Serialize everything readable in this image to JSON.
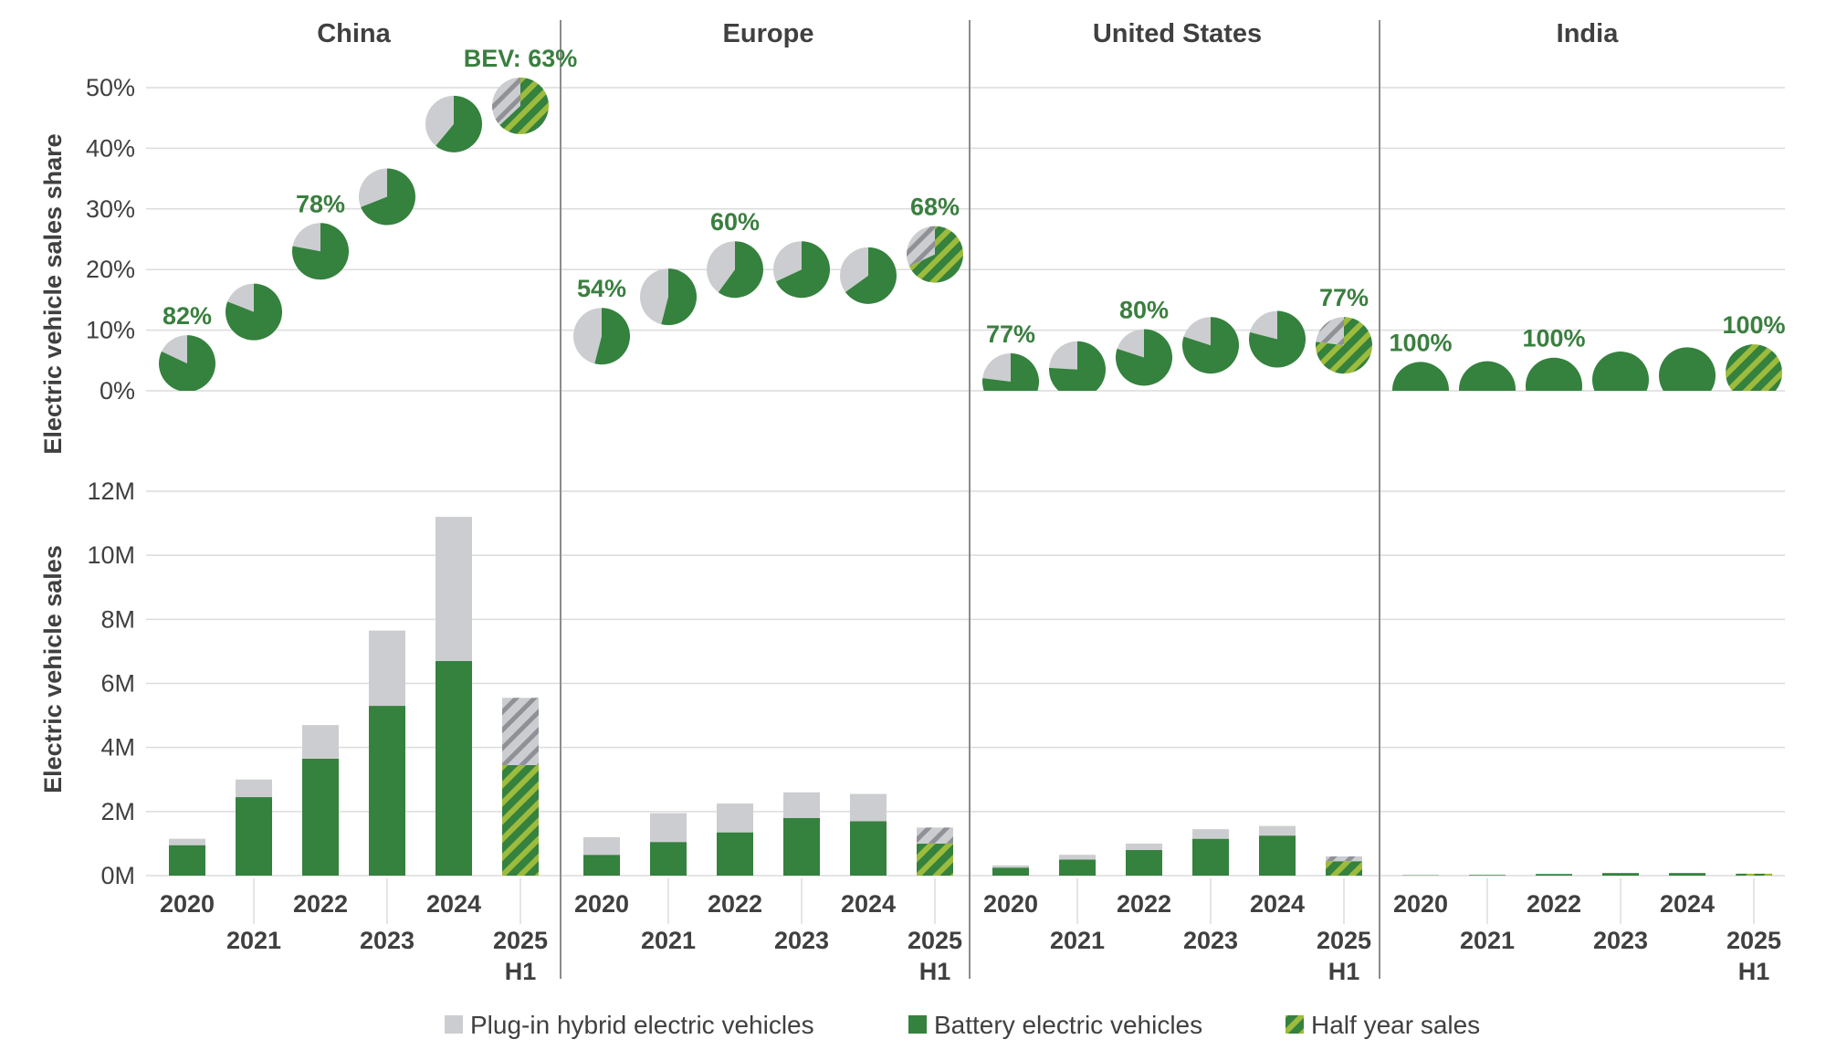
{
  "colors": {
    "bev": "#35813e",
    "phev": "#cccdd0",
    "half_year_stripe": "#9dbb3c",
    "half_year_phev_stripe": "#8f9196",
    "grid": "#dcdcdc",
    "divider": "#8c8c8c"
  },
  "chart_data": {
    "type": "bar",
    "regions": [
      "China",
      "Europe",
      "United States",
      "India"
    ],
    "years": [
      "2020",
      "2021",
      "2022",
      "2023",
      "2024",
      "2025"
    ],
    "last_year_suffix": "H1",
    "top_panel": {
      "ylabel": "Electric vehicle sales share",
      "yticks": [
        "0%",
        "10%",
        "20%",
        "30%",
        "40%",
        "50%"
      ],
      "ylim": [
        0,
        50
      ],
      "unit": "percent",
      "regions": [
        {
          "region": "China",
          "share": [
            4.5,
            13,
            23,
            32,
            44,
            47
          ],
          "bev_fraction": [
            0.82,
            0.81,
            0.78,
            0.69,
            0.61,
            0.63
          ],
          "labels": [
            {
              "index": 0,
              "text": "82%"
            },
            {
              "index": 2,
              "text": "78%"
            },
            {
              "index": 5,
              "text": "BEV: 63%"
            }
          ]
        },
        {
          "region": "Europe",
          "share": [
            9,
            15.5,
            20,
            20,
            19,
            22.5
          ],
          "bev_fraction": [
            0.54,
            0.54,
            0.6,
            0.68,
            0.65,
            0.68
          ],
          "labels": [
            {
              "index": 0,
              "text": "54%"
            },
            {
              "index": 2,
              "text": "60%"
            },
            {
              "index": 5,
              "text": "68%"
            }
          ]
        },
        {
          "region": "United States",
          "share": [
            1.5,
            3.5,
            5.5,
            7.5,
            8.5,
            7.5
          ],
          "bev_fraction": [
            0.77,
            0.76,
            0.8,
            0.8,
            0.79,
            0.77
          ],
          "labels": [
            {
              "index": 0,
              "text": "77%"
            },
            {
              "index": 2,
              "text": "80%"
            },
            {
              "index": 5,
              "text": "77%"
            }
          ]
        },
        {
          "region": "India",
          "share": [
            0.1,
            0.2,
            0.8,
            1.8,
            2.5,
            3
          ],
          "bev_fraction": [
            1,
            1,
            1,
            1,
            1,
            1
          ],
          "labels": [
            {
              "index": 0,
              "text": "100%"
            },
            {
              "index": 2,
              "text": "100%"
            },
            {
              "index": 5,
              "text": "100%"
            }
          ]
        }
      ]
    },
    "bottom_panel": {
      "ylabel": "Electric vehicle sales",
      "yticks": [
        "0M",
        "2M",
        "4M",
        "6M",
        "8M",
        "10M",
        "12M"
      ],
      "ylim": [
        0,
        12
      ],
      "unit": "millions",
      "series": [
        {
          "name": "Battery electric vehicles",
          "values": {
            "China": [
              0.95,
              2.45,
              3.65,
              5.3,
              6.7,
              3.45
            ],
            "Europe": [
              0.65,
              1.05,
              1.35,
              1.8,
              1.7,
              1.0
            ],
            "United States": [
              0.25,
              0.5,
              0.8,
              1.15,
              1.25,
              0.45
            ],
            "India": [
              0.01,
              0.02,
              0.05,
              0.08,
              0.08,
              0.06
            ]
          }
        },
        {
          "name": "Plug-in hybrid electric vehicles",
          "values": {
            "China": [
              0.2,
              0.55,
              1.05,
              2.35,
              4.5,
              2.1
            ],
            "Europe": [
              0.55,
              0.9,
              0.9,
              0.8,
              0.85,
              0.5
            ],
            "United States": [
              0.07,
              0.15,
              0.2,
              0.3,
              0.3,
              0.15
            ],
            "India": [
              0,
              0,
              0,
              0,
              0,
              0
            ]
          }
        }
      ]
    },
    "legend": [
      {
        "key": "phev",
        "label": "Plug-in hybrid electric vehicles"
      },
      {
        "key": "bev",
        "label": "Battery electric vehicles"
      },
      {
        "key": "half",
        "label": "Half year sales"
      }
    ],
    "legend_position": "bottom-center",
    "grid": true
  }
}
